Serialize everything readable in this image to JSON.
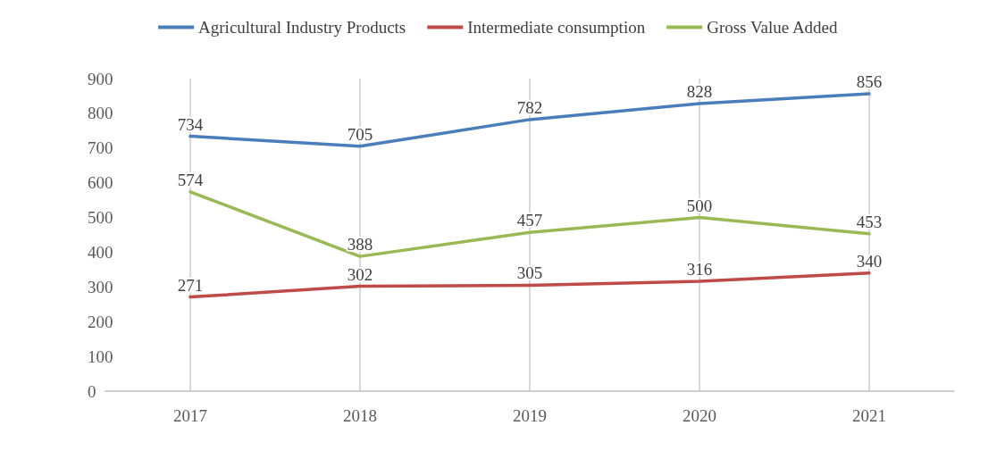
{
  "chart_data": {
    "type": "line",
    "categories": [
      "2017",
      "2018",
      "2019",
      "2020",
      "2021"
    ],
    "series": [
      {
        "name": "Agricultural Industry Products",
        "color": "#4a7ebb",
        "values": [
          734,
          705,
          782,
          828,
          856
        ]
      },
      {
        "name": "Intermediate consumption",
        "color": "#be4b48",
        "values": [
          271,
          302,
          305,
          316,
          340
        ]
      },
      {
        "name": "Gross Value Added",
        "color": "#98b954",
        "values": [
          574,
          388,
          457,
          500,
          453
        ]
      }
    ],
    "ylim": [
      0,
      900
    ],
    "yticks": [
      0,
      100,
      200,
      300,
      400,
      500,
      600,
      700,
      800,
      900
    ],
    "grid": "x",
    "legend": "top",
    "marker": "none",
    "line_style": "solid",
    "data_labels": true
  }
}
